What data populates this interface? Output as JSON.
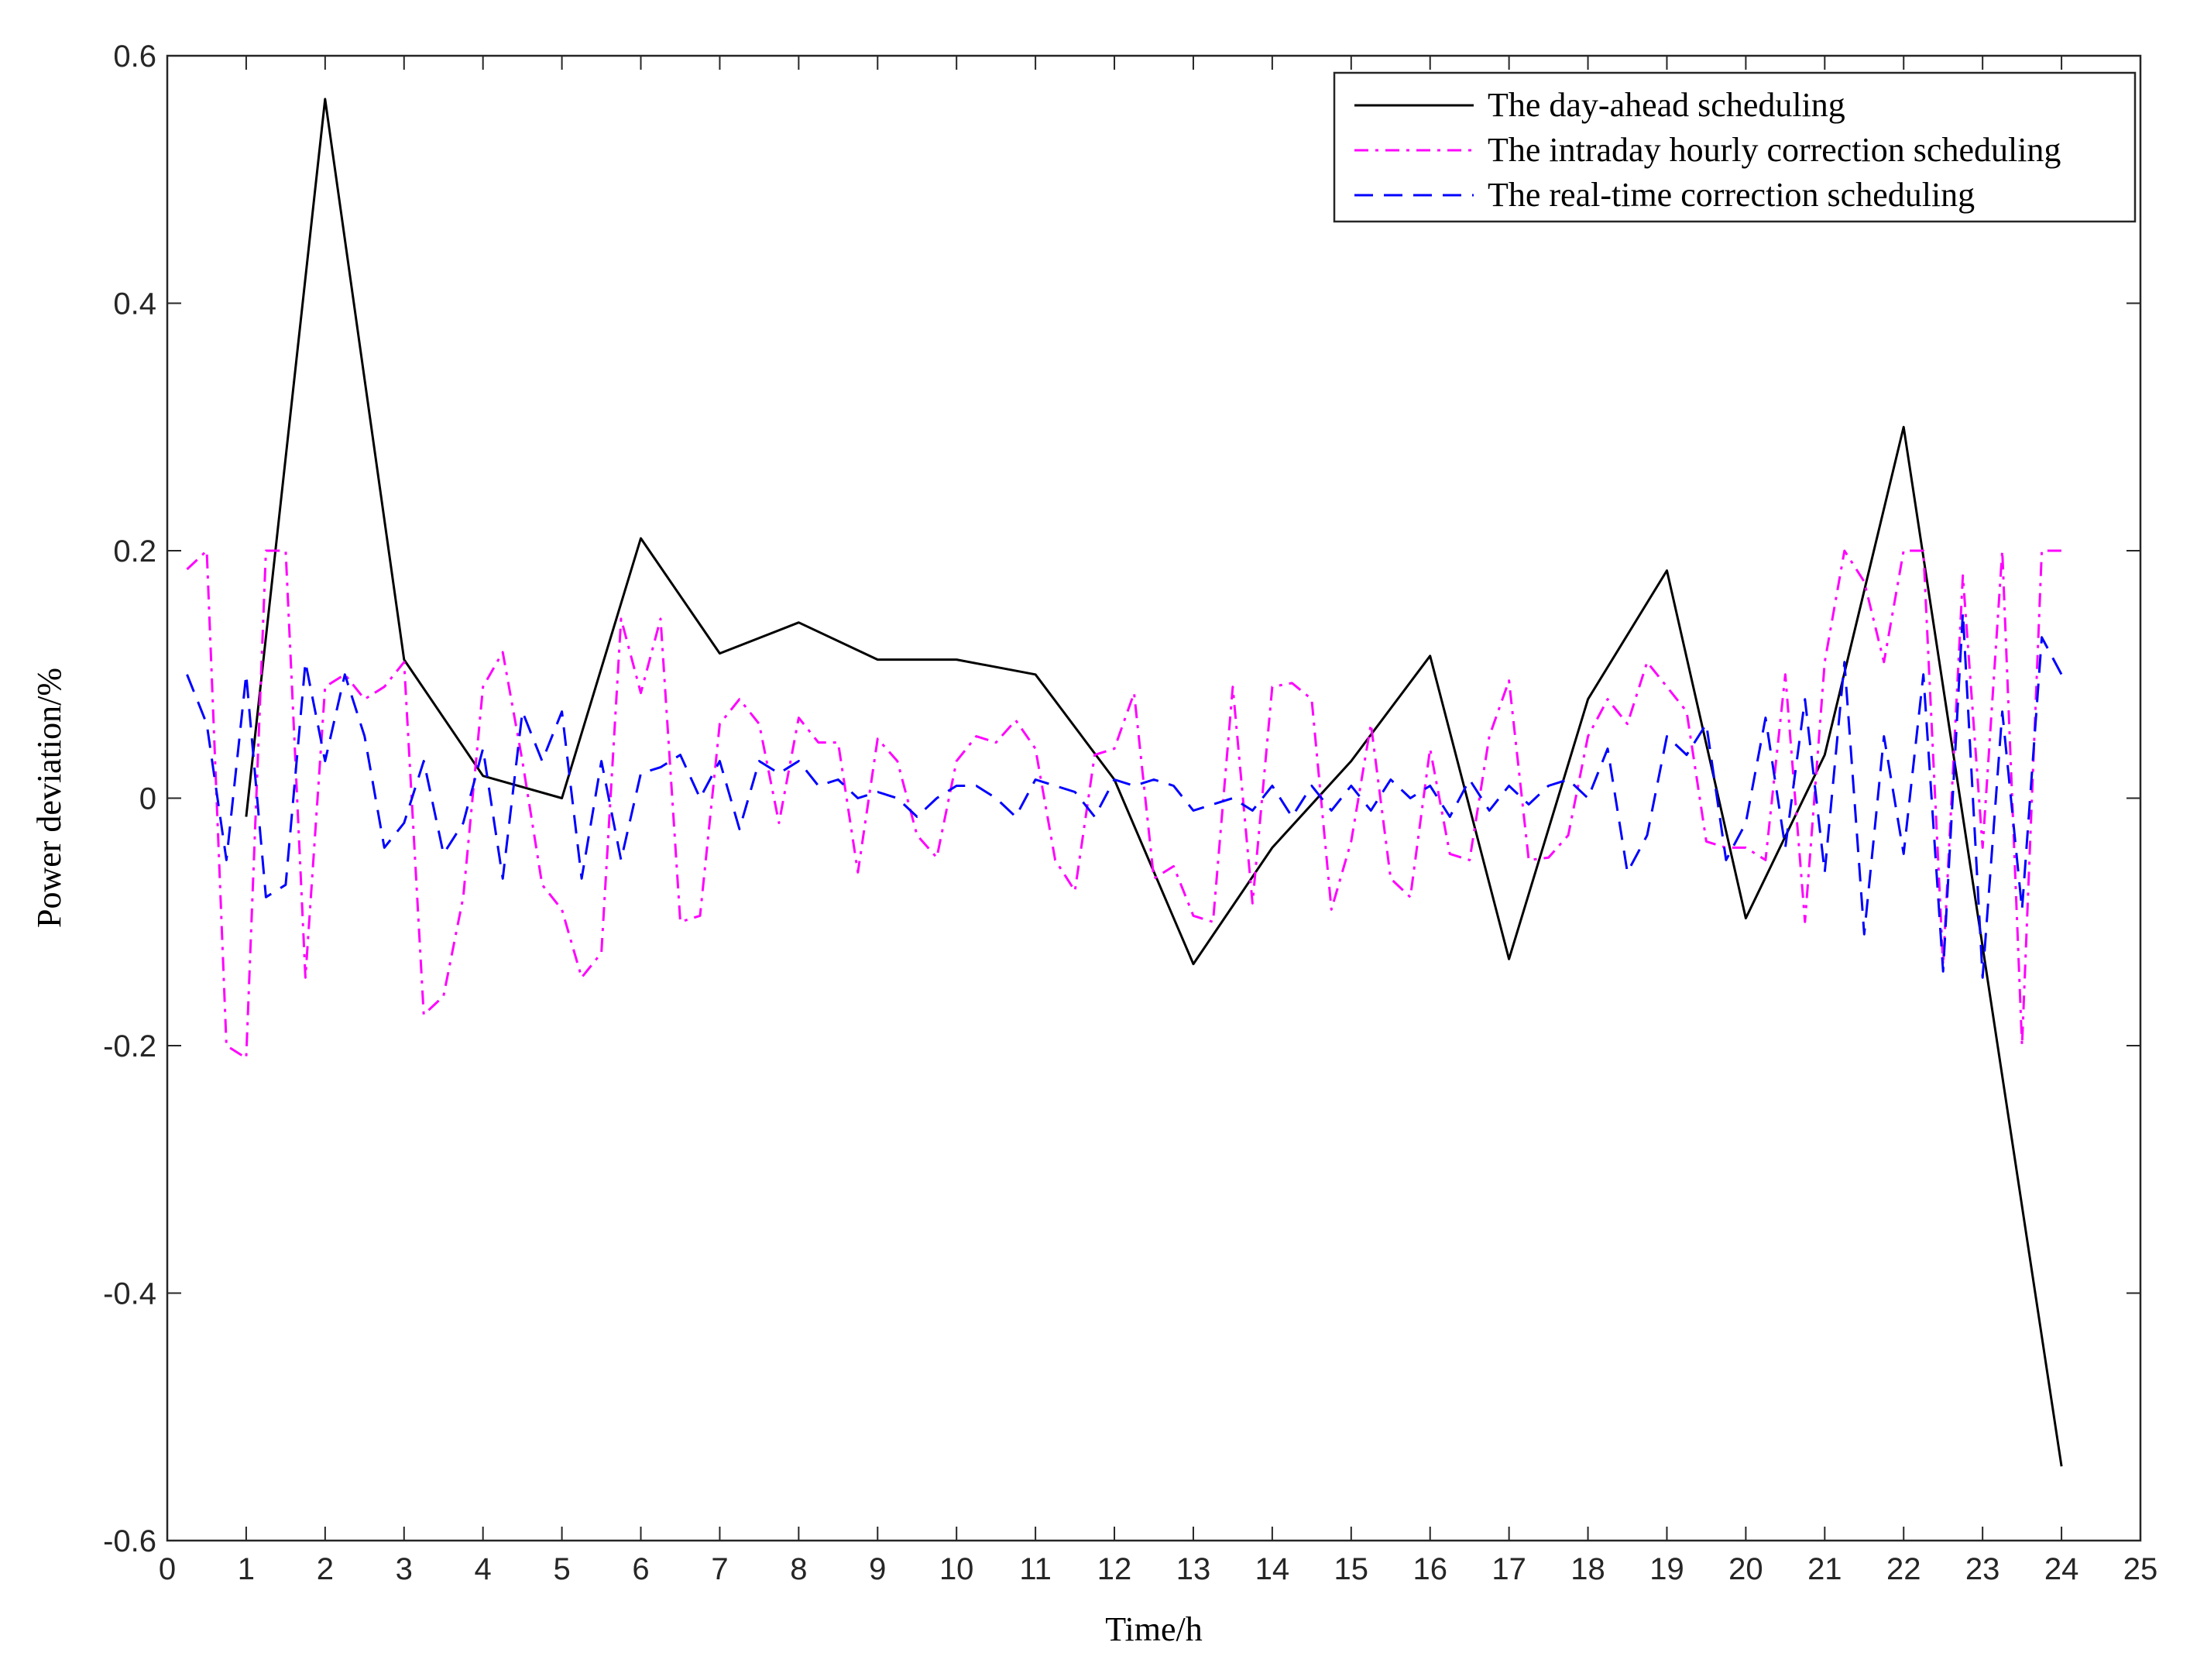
{
  "chart_data": {
    "type": "line",
    "xlabel": "Time/h",
    "ylabel": "Power deviation/%",
    "xlim": [
      0,
      25
    ],
    "xticks": [
      0,
      1,
      2,
      3,
      4,
      5,
      6,
      7,
      8,
      9,
      10,
      11,
      12,
      13,
      14,
      15,
      16,
      17,
      18,
      19,
      20,
      21,
      22,
      23,
      24,
      25
    ],
    "ylim": [
      -0.6,
      0.6
    ],
    "yticks": [
      -0.6,
      -0.4,
      -0.2,
      0,
      0.2,
      0.4,
      0.6
    ],
    "grid": false,
    "legend": "upper right",
    "series": [
      {
        "name": "The day-ahead scheduling",
        "color": "#000000",
        "style": "solid",
        "x": [
          1,
          2,
          3,
          4,
          5,
          6,
          7,
          8,
          9,
          10,
          11,
          12,
          13,
          14,
          15,
          16,
          17,
          18,
          19,
          20,
          21,
          22,
          23,
          24
        ],
        "values": [
          -0.015,
          0.565,
          0.112,
          0.018,
          0.0,
          0.21,
          0.117,
          0.142,
          0.112,
          0.112,
          0.1,
          0.015,
          -0.134,
          -0.04,
          0.03,
          0.115,
          -0.13,
          0.08,
          0.184,
          -0.097,
          0.035,
          0.3,
          -0.12,
          -0.54
        ]
      },
      {
        "name": "The intraday hourly correction scheduling",
        "color": "#ff00ff",
        "style": "dashdot",
        "x": [
          0.25,
          0.5,
          0.75,
          1,
          1.25,
          1.5,
          1.75,
          2,
          2.25,
          2.5,
          2.75,
          3,
          3.25,
          3.5,
          3.75,
          4,
          4.25,
          4.5,
          4.75,
          5,
          5.25,
          5.5,
          5.75,
          6,
          6.25,
          6.5,
          6.75,
          7,
          7.25,
          7.5,
          7.75,
          8,
          8.25,
          8.5,
          8.75,
          9,
          9.25,
          9.5,
          9.75,
          10,
          10.25,
          10.5,
          10.75,
          11,
          11.25,
          11.5,
          11.75,
          12,
          12.25,
          12.5,
          12.75,
          13,
          13.25,
          13.5,
          13.75,
          14,
          14.25,
          14.5,
          14.75,
          15,
          15.25,
          15.5,
          15.75,
          16,
          16.25,
          16.5,
          16.75,
          17,
          17.25,
          17.5,
          17.75,
          18,
          18.25,
          18.5,
          18.75,
          19,
          19.25,
          19.5,
          19.75,
          20,
          20.25,
          20.5,
          20.75,
          21,
          21.25,
          21.5,
          21.75,
          22,
          22.25,
          22.5,
          22.75,
          23,
          23.25,
          23.5,
          23.75,
          24
        ],
        "values": [
          0.185,
          0.2,
          -0.2,
          -0.21,
          0.2,
          0.2,
          -0.145,
          0.09,
          0.1,
          0.08,
          0.09,
          0.11,
          -0.175,
          -0.16,
          -0.08,
          0.09,
          0.118,
          0.03,
          -0.07,
          -0.09,
          -0.145,
          -0.125,
          0.145,
          0.085,
          0.145,
          -0.1,
          -0.095,
          0.06,
          0.08,
          0.06,
          -0.02,
          0.065,
          0.045,
          0.045,
          -0.06,
          0.048,
          0.03,
          -0.03,
          -0.048,
          0.03,
          0.05,
          0.045,
          0.063,
          0.04,
          -0.05,
          -0.075,
          0.035,
          0.04,
          0.085,
          -0.065,
          -0.055,
          -0.095,
          -0.1,
          0.09,
          -0.085,
          0.09,
          0.093,
          0.08,
          -0.09,
          -0.035,
          0.06,
          -0.065,
          -0.08,
          0.04,
          -0.045,
          -0.05,
          0.05,
          0.095,
          -0.05,
          -0.048,
          -0.03,
          0.05,
          0.08,
          0.06,
          0.11,
          0.09,
          0.07,
          -0.035,
          -0.04,
          -0.04,
          -0.05,
          0.1,
          -0.1,
          0.11,
          0.2,
          0.175,
          0.11,
          0.2,
          0.2,
          -0.135,
          0.18,
          -0.04,
          0.2,
          -0.2,
          0.2,
          0.2
        ]
      },
      {
        "name": "The real-time correction scheduling",
        "color": "#0000ff",
        "style": "dashed",
        "x": [
          0.25,
          0.5,
          0.75,
          1,
          1.25,
          1.5,
          1.75,
          2,
          2.25,
          2.5,
          2.75,
          3,
          3.25,
          3.5,
          3.75,
          4,
          4.25,
          4.5,
          4.75,
          5,
          5.25,
          5.5,
          5.75,
          6,
          6.25,
          6.5,
          6.75,
          7,
          7.25,
          7.5,
          7.75,
          8,
          8.25,
          8.5,
          8.75,
          9,
          9.25,
          9.5,
          9.75,
          10,
          10.25,
          10.5,
          10.75,
          11,
          11.25,
          11.5,
          11.75,
          12,
          12.25,
          12.5,
          12.75,
          13,
          13.25,
          13.5,
          13.75,
          14,
          14.25,
          14.5,
          14.75,
          15,
          15.25,
          15.5,
          15.75,
          16,
          16.25,
          16.5,
          16.75,
          17,
          17.25,
          17.5,
          17.75,
          18,
          18.25,
          18.5,
          18.75,
          19,
          19.25,
          19.5,
          19.75,
          20,
          20.25,
          20.5,
          20.75,
          21,
          21.25,
          21.5,
          21.75,
          22,
          22.25,
          22.5,
          22.75,
          23,
          23.25,
          23.5,
          23.75,
          24
        ],
        "values": [
          0.1,
          0.06,
          -0.05,
          0.1,
          -0.08,
          -0.07,
          0.11,
          0.03,
          0.1,
          0.05,
          -0.04,
          -0.02,
          0.03,
          -0.045,
          -0.02,
          0.04,
          -0.065,
          0.07,
          0.03,
          0.07,
          -0.065,
          0.03,
          -0.05,
          0.02,
          0.025,
          0.035,
          0.0,
          0.03,
          -0.025,
          0.03,
          0.02,
          0.03,
          0.01,
          0.015,
          0.0,
          0.005,
          0.0,
          -0.015,
          0.0,
          0.01,
          0.01,
          0.0,
          -0.015,
          0.015,
          0.01,
          0.005,
          -0.015,
          0.015,
          0.01,
          0.015,
          0.01,
          -0.01,
          -0.005,
          0.0,
          -0.01,
          0.01,
          -0.015,
          0.01,
          -0.01,
          0.01,
          -0.01,
          0.015,
          0.0,
          0.01,
          -0.015,
          0.015,
          -0.01,
          0.01,
          -0.005,
          0.01,
          0.015,
          0.0,
          0.04,
          -0.06,
          -0.03,
          0.05,
          0.035,
          0.06,
          -0.05,
          -0.02,
          0.065,
          -0.04,
          0.08,
          -0.06,
          0.11,
          -0.11,
          0.05,
          -0.045,
          0.1,
          -0.14,
          0.15,
          -0.145,
          0.07,
          -0.09,
          0.13,
          0.1
        ]
      }
    ]
  }
}
